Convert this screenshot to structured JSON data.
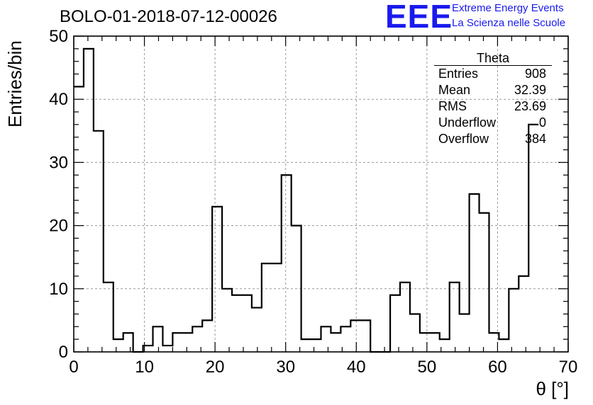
{
  "chart_data": {
    "type": "bar",
    "title": "BOLO-01-2018-07-12-00026",
    "xlabel": "θ [°]",
    "ylabel": "Entries/bin",
    "xlim": [
      0,
      70
    ],
    "ylim": [
      0,
      50
    ],
    "bin_width": 1.4,
    "values": [
      42,
      48,
      35,
      11,
      2,
      3,
      0,
      1,
      4,
      1,
      3,
      3,
      4,
      5,
      23,
      10,
      9,
      9,
      7,
      14,
      14,
      28,
      20,
      2,
      2,
      4,
      3,
      4,
      5,
      5,
      0,
      0,
      9,
      11,
      6,
      3,
      3,
      2,
      11,
      6,
      25,
      22,
      3,
      2,
      10,
      12,
      36
    ],
    "x_ticks": [
      0,
      10,
      20,
      30,
      40,
      50,
      60,
      70
    ],
    "y_ticks": [
      0,
      10,
      20,
      30,
      40,
      50
    ],
    "grid": true
  },
  "logo": {
    "mark": "EEE",
    "line1": "Extreme Energy Events",
    "line2": "La Scienza nelle Scuole",
    "color": "#1a1aee"
  },
  "stats": {
    "title": "Theta",
    "rows": [
      {
        "label": "Entries",
        "value": "908"
      },
      {
        "label": "Mean",
        "value": "32.39"
      },
      {
        "label": "RMS",
        "value": "23.69"
      },
      {
        "label": "Underflow",
        "value": "0"
      },
      {
        "label": "Overflow",
        "value": "384"
      }
    ]
  }
}
